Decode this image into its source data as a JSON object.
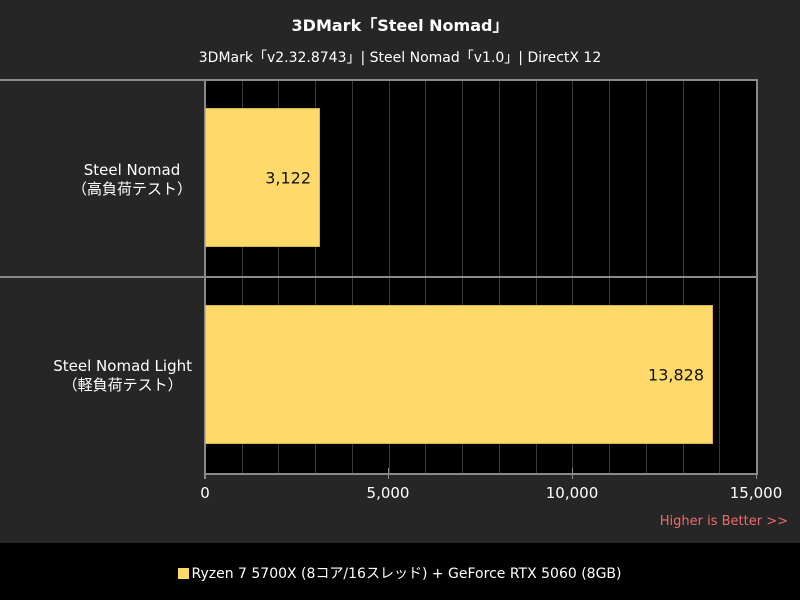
{
  "chart_data": {
    "type": "bar",
    "orientation": "horizontal",
    "title": "3DMark「Steel Nomad」",
    "subtitle": "3DMark「v2.32.8743」| Steel Nomad「v1.0」| DirectX 12",
    "categories": [
      "Steel Nomad\n(高負荷テスト)",
      "Steel Nomad Light\n(軽負荷テスト)"
    ],
    "series": [
      {
        "name": "Ryzen 7 5700X (8コア/16スレッド) + GeForce RTX 5060 (8GB)",
        "values": [
          3122,
          13828
        ],
        "color": "#FFD96A"
      }
    ],
    "xlim": [
      0,
      15000
    ],
    "xticks": [
      0,
      5000,
      10000,
      15000
    ],
    "xlabel": "",
    "ylabel": "",
    "annotation": "Higher is Better >>",
    "grid": true
  },
  "header": {
    "title": "3DMark「Steel Nomad」",
    "subtitle": "3DMark「v2.32.8743」| Steel Nomad「v1.0」| DirectX 12"
  },
  "categories": [
    {
      "line1": "Steel Nomad",
      "line2": "（高負荷テスト）",
      "value_label": "3,122",
      "value": 3122
    },
    {
      "line1": "Steel Nomad Light",
      "line2": "（軽負荷テスト）",
      "value_label": "13,828",
      "value": 13828
    }
  ],
  "axis": {
    "ticks": [
      "0",
      "5,000",
      "10,000",
      "15,000"
    ]
  },
  "annotation": "Higher is Better >>",
  "legend": {
    "label": "Ryzen 7 5700X (8コア/16スレッド) + GeForce RTX 5060 (8GB)",
    "color": "#FFD96A"
  },
  "colors": {
    "bar": "#FFD96A",
    "annotation": "#EE6B6B",
    "panel": "#262626",
    "plot": "#000000"
  }
}
